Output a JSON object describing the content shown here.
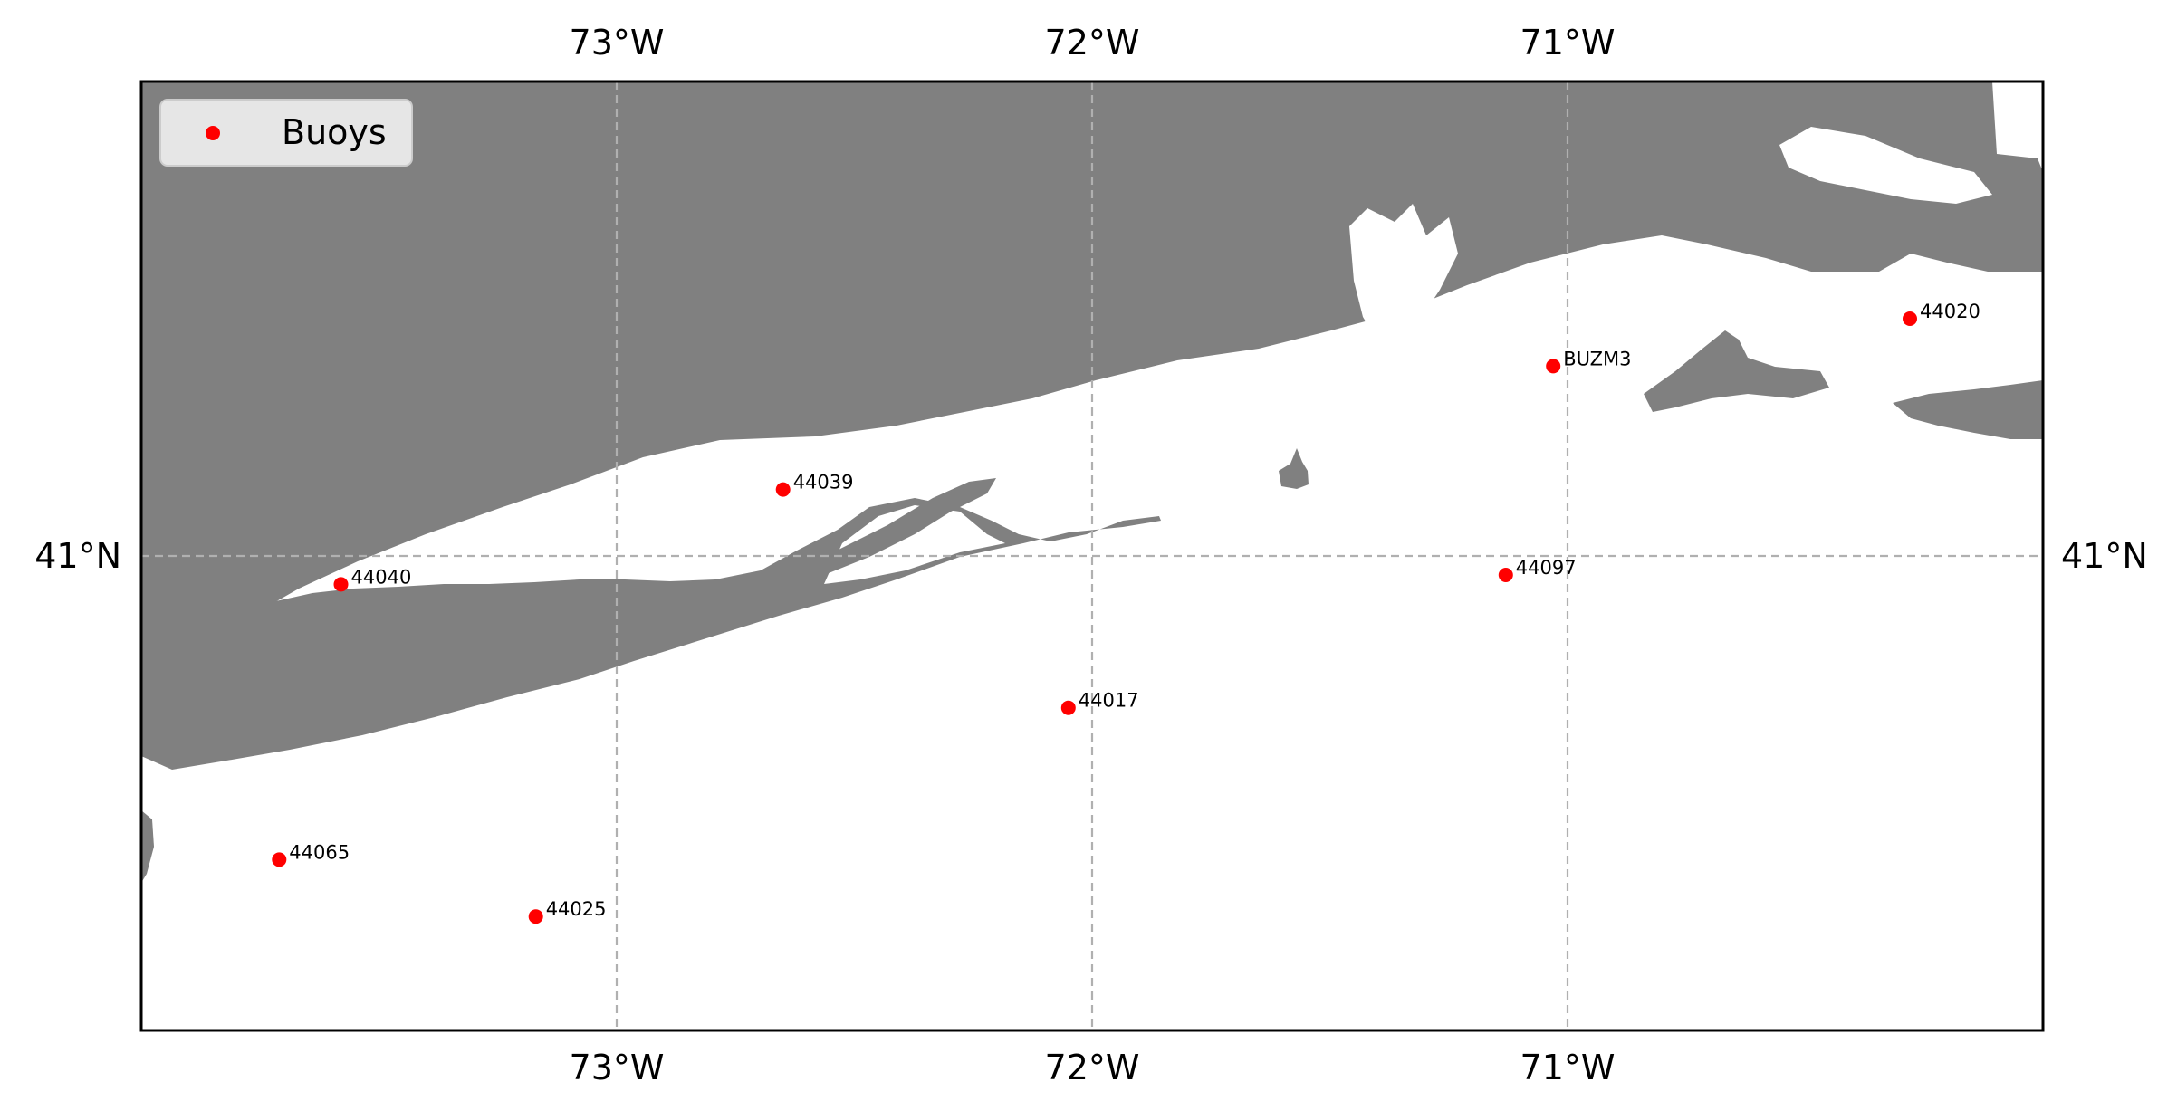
{
  "map": {
    "lon_range": [
      -74.0,
      -70.0
    ],
    "lat_range": [
      40.5,
      41.5
    ],
    "land_color": "#808080",
    "water_color": "#ffffff",
    "grid": true,
    "grid_color": "#b0b0b0",
    "lon_ticks": [
      {
        "value": -73,
        "label": "73°W"
      },
      {
        "value": -72,
        "label": "72°W"
      },
      {
        "value": -71,
        "label": "71°W"
      }
    ],
    "lat_ticks": [
      {
        "value": 41,
        "label": "41°N"
      }
    ]
  },
  "legend": {
    "placement": "top-left",
    "label": "Buoys",
    "marker_color": "#ff0000"
  },
  "buoys": [
    {
      "id": "44020",
      "lon": -70.28,
      "lat": 41.25
    },
    {
      "id": "BUZM3",
      "lon": -71.03,
      "lat": 41.2
    },
    {
      "id": "44039",
      "lon": -72.65,
      "lat": 41.07
    },
    {
      "id": "44040",
      "lon": -73.58,
      "lat": 40.97
    },
    {
      "id": "44097",
      "lon": -71.13,
      "lat": 40.98
    },
    {
      "id": "44017",
      "lon": -72.05,
      "lat": 40.84
    },
    {
      "id": "44065",
      "lon": -73.71,
      "lat": 40.68
    },
    {
      "id": "44025",
      "lon": -73.17,
      "lat": 40.62
    }
  ]
}
